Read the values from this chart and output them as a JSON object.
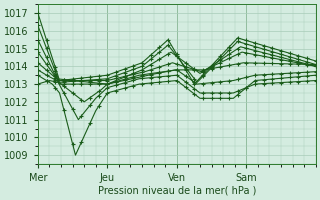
{
  "background_color": "#d4ece0",
  "grid_color": "#a8ccb8",
  "line_color": "#1a5c1a",
  "ylabel_text": "Pression niveau de la mer( hPa )",
  "x_tick_labels": [
    "Mer",
    "Jeu",
    "Ven",
    "Sam"
  ],
  "x_tick_positions": [
    0,
    48,
    96,
    144
  ],
  "ylim": [
    1008.5,
    1017.5
  ],
  "yticks": [
    1009,
    1010,
    1011,
    1012,
    1013,
    1014,
    1015,
    1016,
    1017
  ],
  "figsize": [
    3.2,
    2.0
  ],
  "dpi": 100
}
